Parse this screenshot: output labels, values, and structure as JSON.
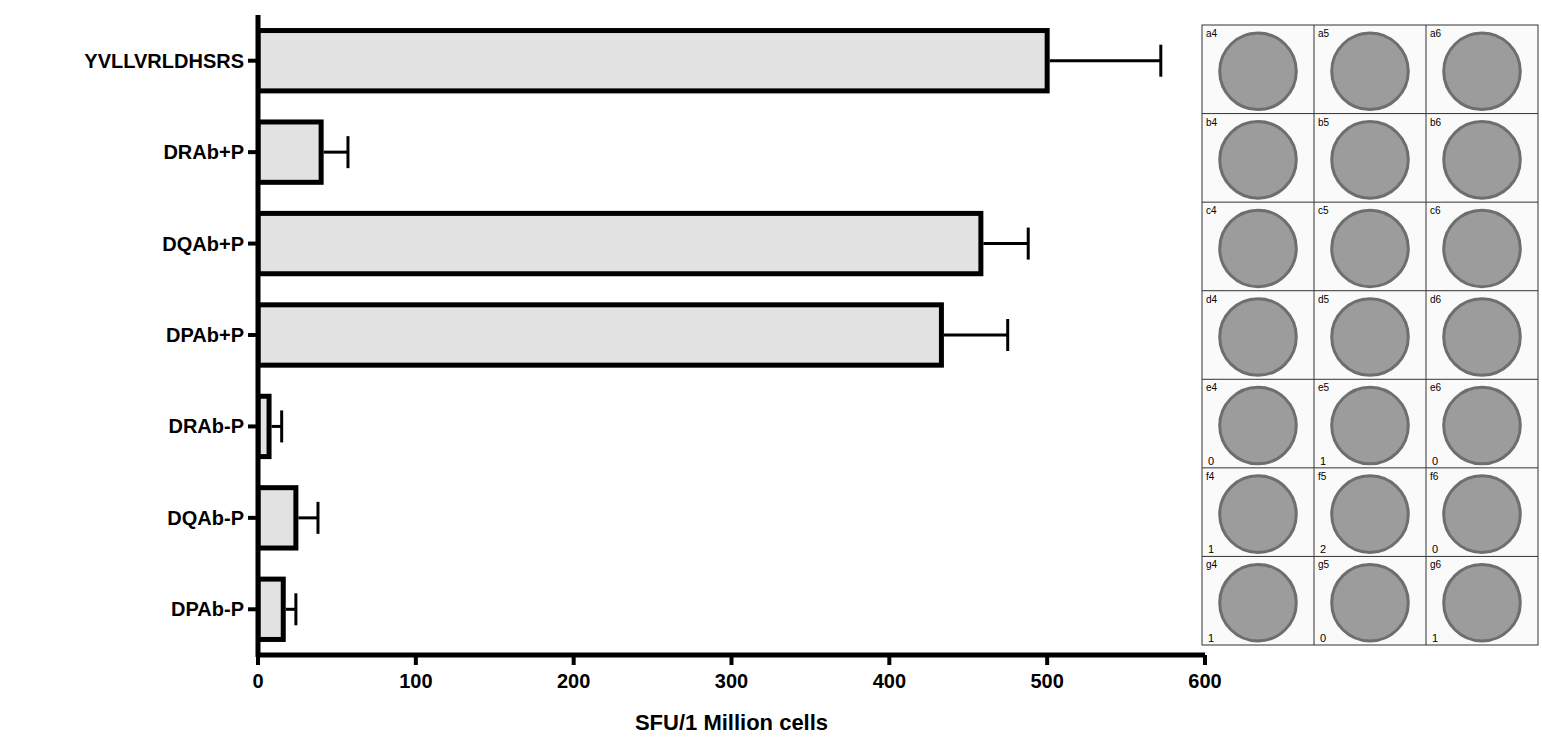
{
  "chart_data": {
    "type": "bar",
    "orientation": "horizontal",
    "categories": [
      "YVLLVRLDHSRS",
      "DRAb+P",
      "DQAb+P",
      "DPAb+P",
      "DRAb-P",
      "DQAb-P",
      "DPAb-P"
    ],
    "values": [
      500,
      40,
      458,
      433,
      7,
      24,
      16
    ],
    "errors": [
      72,
      17,
      30,
      42,
      8,
      14,
      8
    ],
    "color": "#e2e2e2",
    "x_label": "SFU/1 Million cells",
    "xlim": [
      0,
      600
    ],
    "xticks": [
      0,
      100,
      200,
      300,
      400,
      500,
      600
    ],
    "grid": false
  },
  "wells": [
    [
      {
        "label": "a4"
      },
      {
        "label": "a5"
      },
      {
        "label": "a6"
      }
    ],
    [
      {
        "label": "b4"
      },
      {
        "label": "b5"
      },
      {
        "label": "b6"
      }
    ],
    [
      {
        "label": "c4"
      },
      {
        "label": "c5"
      },
      {
        "label": "c6"
      }
    ],
    [
      {
        "label": "d4"
      },
      {
        "label": "d5"
      },
      {
        "label": "d6"
      }
    ],
    [
      {
        "label": "e4",
        "count": 0
      },
      {
        "label": "e5",
        "count": 1
      },
      {
        "label": "e6",
        "count": 0
      }
    ],
    [
      {
        "label": "f4",
        "count": 1
      },
      {
        "label": "f5",
        "count": 2
      },
      {
        "label": "f6",
        "count": 0
      }
    ],
    [
      {
        "label": "g4",
        "count": 1
      },
      {
        "label": "g5",
        "count": 0
      },
      {
        "label": "g6",
        "count": 1
      }
    ]
  ]
}
